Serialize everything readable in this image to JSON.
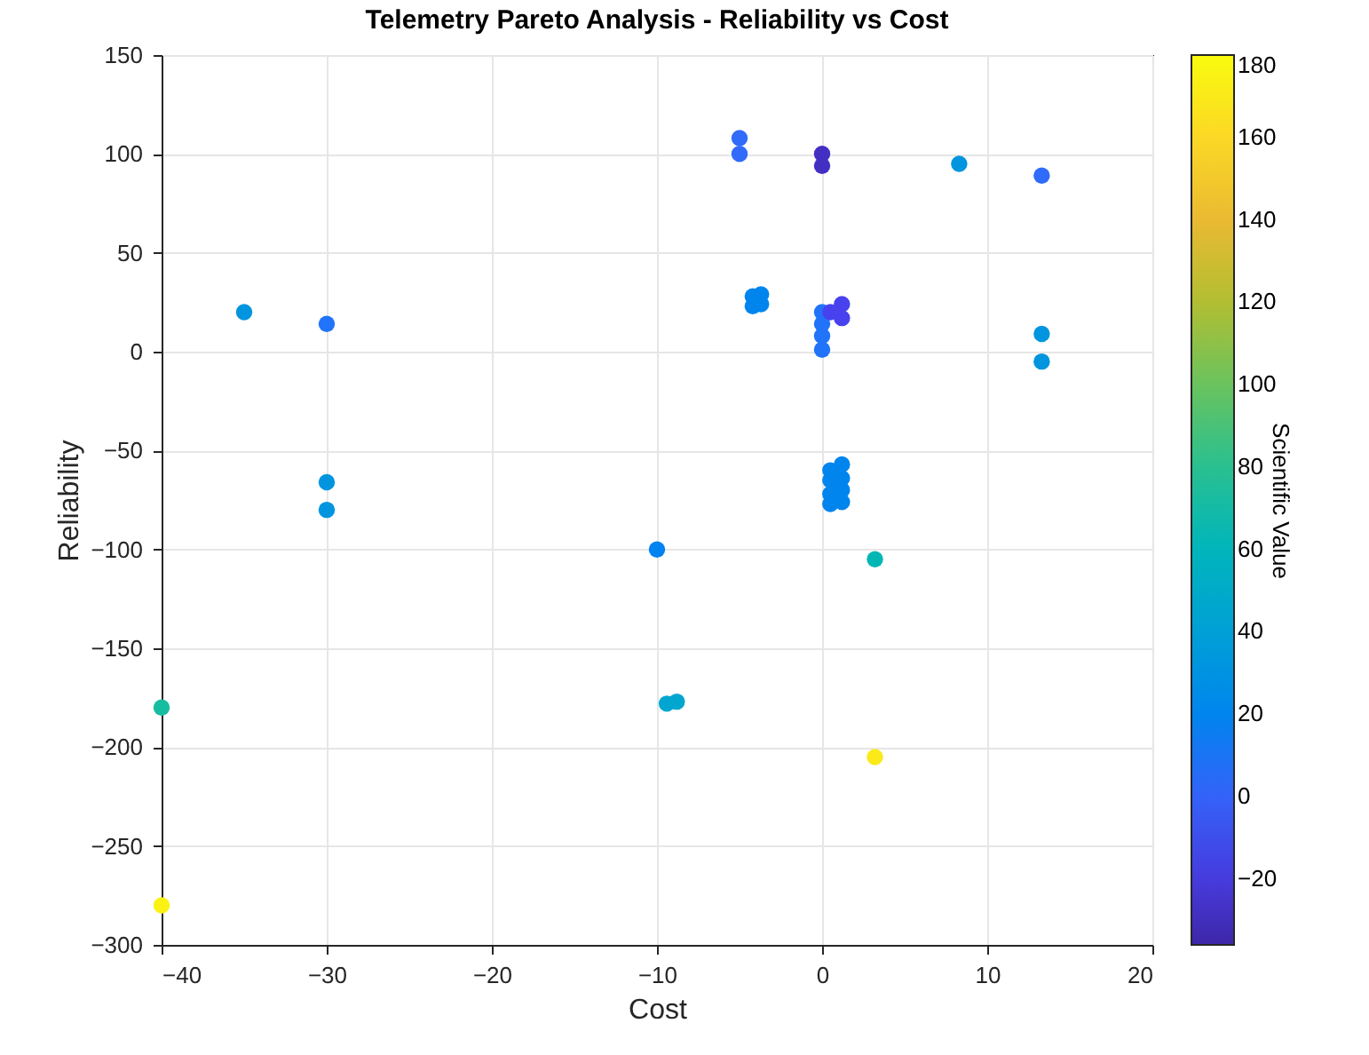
{
  "chart_data": {
    "type": "scatter",
    "title": "Telemetry Pareto Analysis - Reliability vs Cost",
    "xlabel": "Cost",
    "ylabel": "Reliability",
    "clabel": "Scientific Value",
    "x": [
      -35,
      -30,
      -30,
      -30,
      -40,
      -40,
      -10,
      -9.4,
      -8.8,
      -5,
      -5,
      0,
      0,
      8.3,
      13.3,
      -4.2,
      -3.7,
      -4.2,
      -3.7,
      0,
      0,
      0,
      0,
      1.2,
      1.2,
      0.5,
      13.3,
      13.3,
      0.5,
      1.2,
      0.5,
      1.2,
      0.5,
      1.2,
      0.5,
      1.2,
      3.2,
      3.2
    ],
    "values": [
      20,
      14,
      -66,
      -80,
      -180,
      -280,
      -100,
      -178,
      -177,
      108,
      100,
      100,
      94,
      95,
      89,
      28,
      29,
      23,
      24,
      20,
      14,
      8,
      1,
      24,
      17,
      20,
      9,
      -5,
      -60,
      -57,
      -65,
      -64,
      -72,
      -70,
      -77,
      -76,
      -105,
      -205
    ],
    "cvalues": [
      32,
      10,
      32,
      32,
      72,
      175,
      18,
      45,
      45,
      5,
      5,
      -28,
      -28,
      32,
      5,
      20,
      20,
      20,
      20,
      10,
      10,
      10,
      10,
      -15,
      -15,
      -15,
      32,
      32,
      20,
      20,
      20,
      20,
      20,
      20,
      20,
      20,
      63,
      170
    ],
    "xlim": [
      -40,
      20
    ],
    "xticks": [
      -40,
      -30,
      -20,
      -10,
      0,
      10,
      20
    ],
    "ylim": [
      -300,
      150
    ],
    "yticks": [
      -300,
      -250,
      -200,
      -150,
      -100,
      -50,
      0,
      50,
      100,
      150
    ],
    "clim": [
      -36,
      180
    ],
    "cticks": [
      -20,
      0,
      20,
      40,
      60,
      80,
      100,
      120,
      140,
      160,
      180
    ],
    "grid": true,
    "marker": "circle"
  }
}
